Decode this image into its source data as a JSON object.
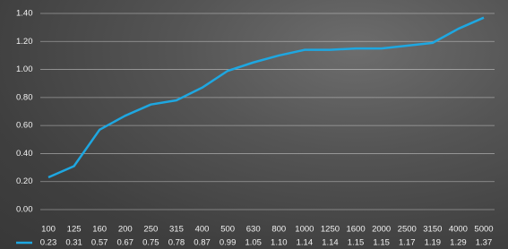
{
  "chart_data": {
    "type": "line",
    "categories": [
      "100",
      "125",
      "160",
      "200",
      "250",
      "315",
      "400",
      "500",
      "630",
      "800",
      "1000",
      "1250",
      "1600",
      "2000",
      "2500",
      "3150",
      "4000",
      "5000"
    ],
    "series": [
      {
        "color": "#1ea7e1",
        "values": [
          0.23,
          0.31,
          0.57,
          0.67,
          0.75,
          0.78,
          0.87,
          0.99,
          1.05,
          1.1,
          1.14,
          1.14,
          1.15,
          1.15,
          1.17,
          1.19,
          1.29,
          1.37
        ],
        "value_labels": [
          "0.23",
          "0.31",
          "0.57",
          "0.67",
          "0.75",
          "0.78",
          "0.87",
          "0.99",
          "1.05",
          "1.10",
          "1.14",
          "1.14",
          "1.15",
          "1.15",
          "1.17",
          "1.19",
          "1.29",
          "1.37"
        ]
      }
    ],
    "ylim": [
      0,
      1.4
    ],
    "yticks": [
      {
        "value": 0,
        "label": "0.00"
      },
      {
        "value": 0.2,
        "label": "0.20"
      },
      {
        "value": 0.4,
        "label": "0.40"
      },
      {
        "value": 0.6,
        "label": "0.60"
      },
      {
        "value": 0.8,
        "label": "0.80"
      },
      {
        "value": 1.0,
        "label": "1.00"
      },
      {
        "value": 1.2,
        "label": "1.20"
      },
      {
        "value": 1.4,
        "label": "1.40"
      }
    ],
    "grid": true
  }
}
